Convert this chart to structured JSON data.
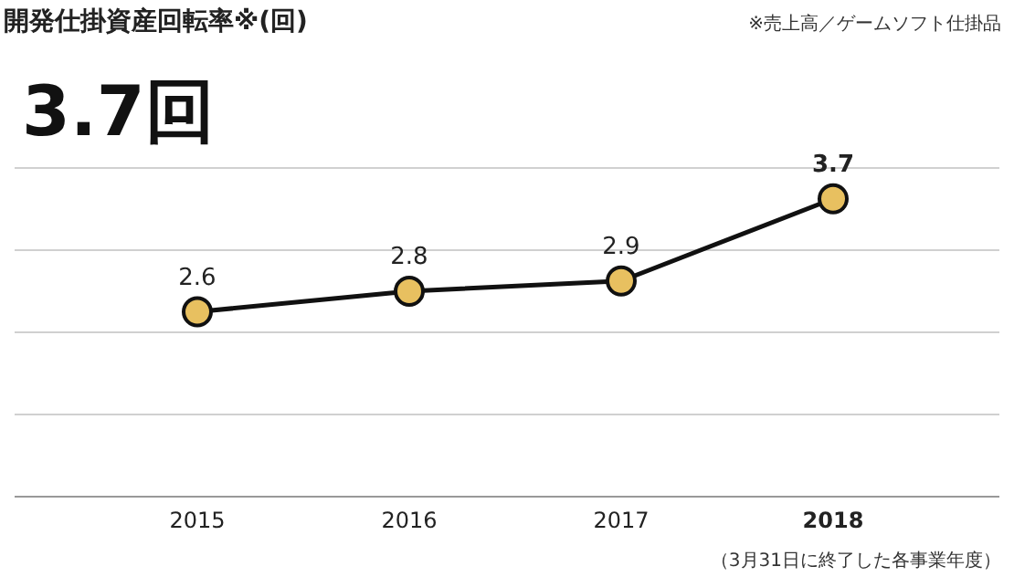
{
  "chart_data": {
    "type": "line",
    "title": "開発仕掛資産回転率※(回)",
    "categories": [
      "2015",
      "2016",
      "2017",
      "2018"
    ],
    "series": [
      {
        "color": "#e8c060",
        "values": [
          2.6,
          2.8,
          2.9,
          3.7
        ]
      }
    ],
    "ylim": [
      0.8,
      4.0
    ],
    "yticks": [
      {
        "value": 0.8,
        "label": null
      },
      {
        "value": 1.6,
        "label": null
      },
      {
        "value": 2.4,
        "label": null
      },
      {
        "value": 3.2,
        "label": null
      },
      {
        "value": 4.0,
        "label": null
      }
    ],
    "grid": "y",
    "marker": "circle",
    "line_style": "solid",
    "data_labels": true,
    "tick_labels": "x",
    "annotations": [
      "3.7回",
      "※売上高／ゲームソフト仕掛品",
      "（3月31日に終了した各事業年度）"
    ]
  }
}
